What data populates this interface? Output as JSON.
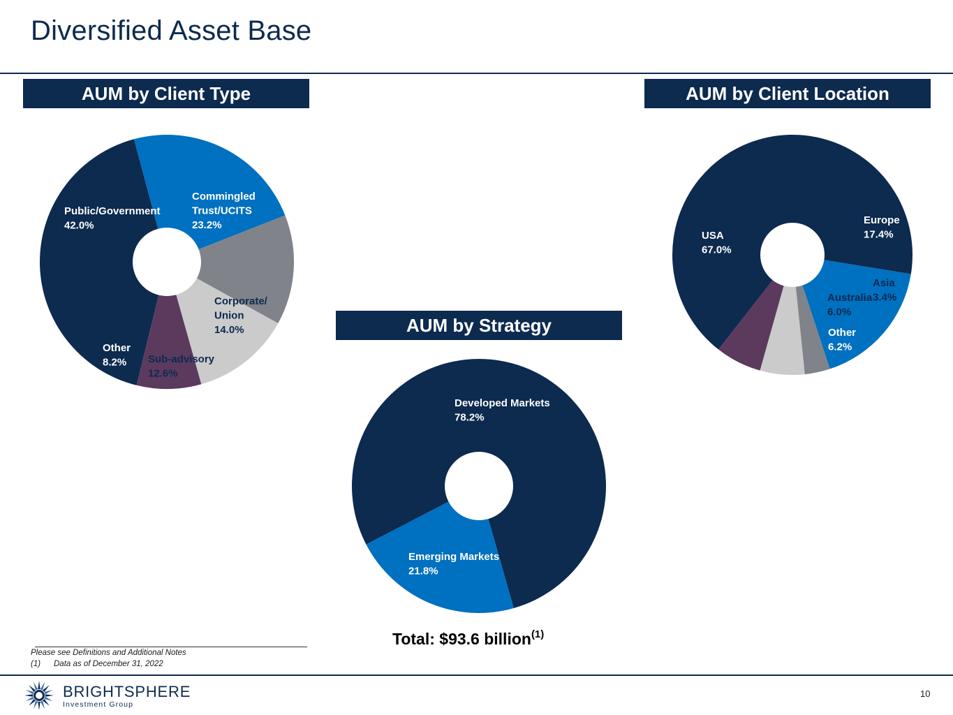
{
  "page": {
    "title": "Diversified Asset Base",
    "page_number": "10"
  },
  "colors": {
    "navy": "#0d2a4f",
    "blue": "#0070c0",
    "gray": "#808389",
    "light_gray": "#cbcbcb",
    "purple": "#5b3a5e"
  },
  "chart_data": [
    {
      "id": "client_type",
      "type": "pie",
      "donut": true,
      "title": "AUM by Client Type",
      "slices": [
        {
          "label_lines": [
            "Public/Government"
          ],
          "value_label": "42.0%",
          "value": 42.0,
          "color": "#0d2a4f",
          "label_color": "#ffffff"
        },
        {
          "label_lines": [
            "Commingled",
            "Trust/UCITS"
          ],
          "value_label": "23.2%",
          "value": 23.2,
          "color": "#0070c0",
          "label_color": "#ffffff"
        },
        {
          "label_lines": [
            "Corporate/",
            "Union"
          ],
          "value_label": "14.0%",
          "value": 14.0,
          "color": "#808389",
          "label_color": "#0d2a4f"
        },
        {
          "label_lines": [
            "Sub-advisory"
          ],
          "value_label": "12.6%",
          "value": 12.6,
          "color": "#cbcbcb",
          "label_color": "#0d2a4f"
        },
        {
          "label_lines": [
            "Other"
          ],
          "value_label": "8.2%",
          "value": 8.2,
          "color": "#5b3a5e",
          "label_color": "#ffffff"
        }
      ]
    },
    {
      "id": "client_location",
      "type": "pie",
      "donut": true,
      "title": "AUM by Client Location",
      "slices": [
        {
          "label_lines": [
            "USA"
          ],
          "value_label": "67.0%",
          "value": 67.0,
          "color": "#0d2a4f",
          "label_color": "#ffffff"
        },
        {
          "label_lines": [
            "Europe"
          ],
          "value_label": "17.4%",
          "value": 17.4,
          "color": "#0070c0",
          "label_color": "#ffffff"
        },
        {
          "label_lines": [
            "Asia"
          ],
          "value_label": "3.4%",
          "value": 3.4,
          "color": "#808389",
          "label_color": "#0d2a4f"
        },
        {
          "label_lines": [
            "Australia"
          ],
          "value_label": "6.0%",
          "value": 6.0,
          "color": "#cbcbcb",
          "label_color": "#0d2a4f"
        },
        {
          "label_lines": [
            "Other"
          ],
          "value_label": "6.2%",
          "value": 6.2,
          "color": "#5b3a5e",
          "label_color": "#ffffff"
        }
      ]
    },
    {
      "id": "strategy",
      "type": "pie",
      "donut": true,
      "title": "AUM by Strategy",
      "slices": [
        {
          "label_lines": [
            "Developed Markets"
          ],
          "value_label": "78.2%",
          "value": 78.2,
          "color": "#0d2a4f",
          "label_color": "#ffffff"
        },
        {
          "label_lines": [
            "Emerging Markets"
          ],
          "value_label": "21.8%",
          "value": 21.8,
          "color": "#0070c0",
          "label_color": "#ffffff"
        }
      ]
    }
  ],
  "total": {
    "text": "Total: $93.6 billion",
    "superscript": "(1)"
  },
  "footnotes": {
    "line1": "Please see Definitions and Additional Notes",
    "line2_number": "(1)",
    "line2_text": "Data as of December 31, 2022"
  },
  "brand": {
    "name": "BRIGHTSPHERE",
    "sub": "Investment Group"
  }
}
